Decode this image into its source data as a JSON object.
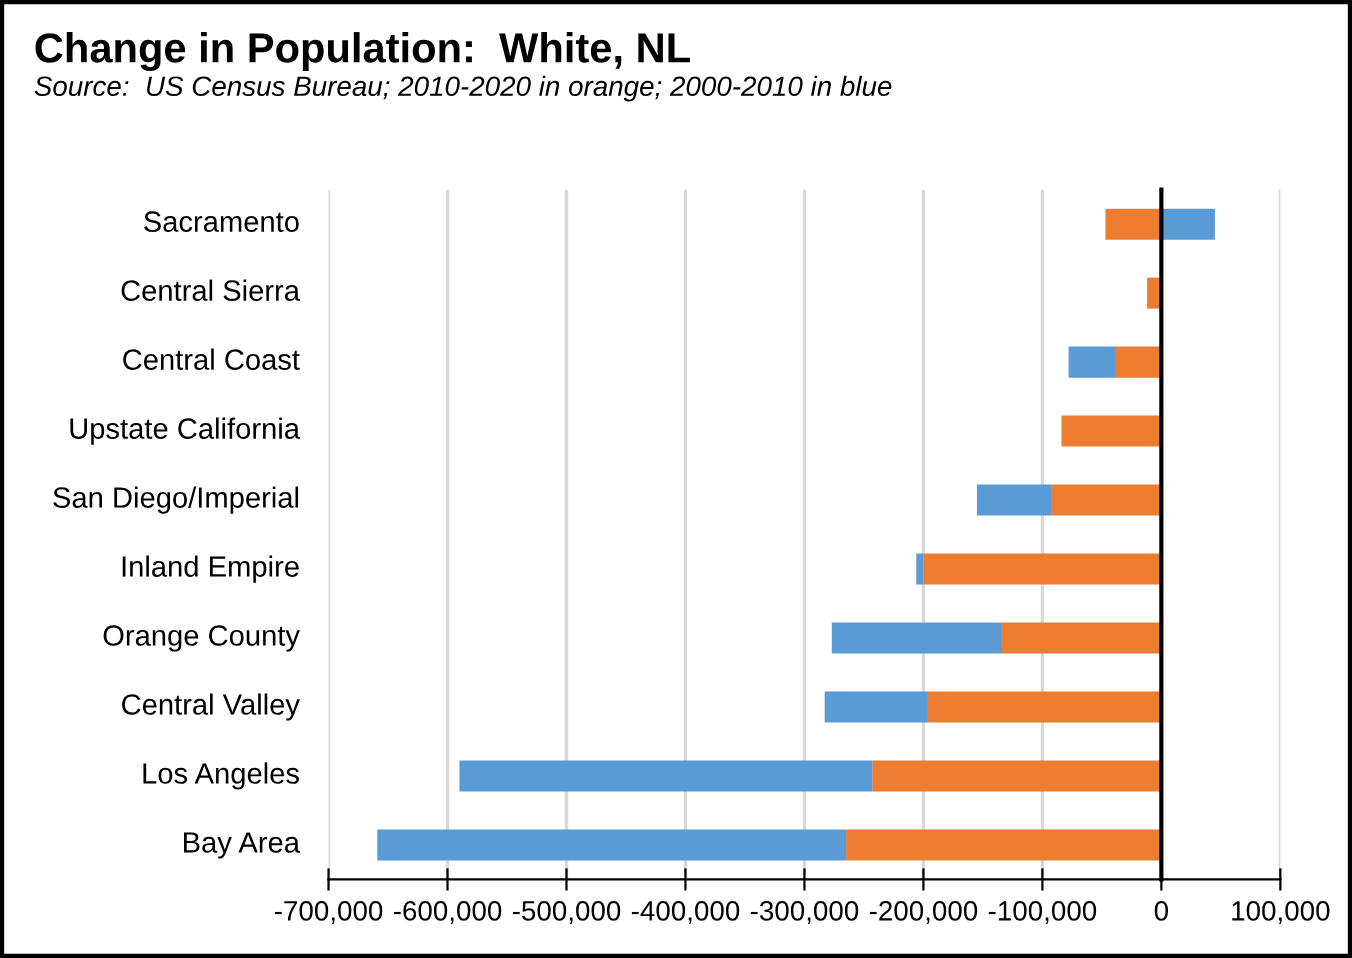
{
  "chart_data": {
    "type": "bar",
    "orientation": "horizontal",
    "stacked": true,
    "title": "Change in Population:  White, NL",
    "annotations": [
      "Source:  US Census Bureau; 2010-2020 in orange; 2000-2010 in blue"
    ],
    "categories": [
      "Sacramento",
      "Central Sierra",
      "Central Coast",
      "Upstate California",
      "San Diego/Imperial",
      "Inland Empire",
      "Orange County",
      "Central Valley",
      "Los Angeles",
      "Bay Area"
    ],
    "series": [
      {
        "color": "#ed7d31",
        "values": [
          -47000,
          -12000,
          -39000,
          -84000,
          -92000,
          -200000,
          -134000,
          -197000,
          -243000,
          -265000
        ]
      },
      {
        "color": "#5b9bd5",
        "values": [
          45000,
          0,
          -39000,
          0,
          -63000,
          -6000,
          -143000,
          -86000,
          -347000,
          -394000
        ]
      }
    ],
    "xlim": [
      -700000,
      100000
    ],
    "xticks": [
      {
        "value": -700000,
        "label": "-700,000"
      },
      {
        "value": -600000,
        "label": "-600,000"
      },
      {
        "value": -500000,
        "label": "-500,000"
      },
      {
        "value": -400000,
        "label": "-400,000"
      },
      {
        "value": -300000,
        "label": "-300,000"
      },
      {
        "value": -200000,
        "label": "-200,000"
      },
      {
        "value": -100000,
        "label": "-100,000"
      },
      0,
      {
        "value": 100000,
        "label": "100,000"
      }
    ],
    "grid": "x",
    "legend": false
  }
}
